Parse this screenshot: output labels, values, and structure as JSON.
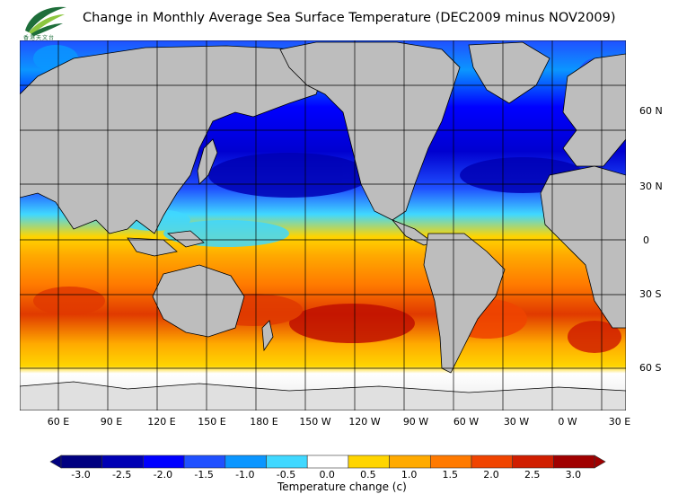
{
  "title": "Change in Monthly Average Sea Surface Temperature (DEC2009 minus NOV2009)",
  "logo": {
    "text": "香港天文台",
    "colors": {
      "leaf_dark": "#1e6e3a",
      "leaf_light": "#8cc63f"
    }
  },
  "map": {
    "land_color": "#bdbdbd",
    "ice_color": "#e0e0e0",
    "grid_color": "#000000",
    "latitude_labels": [
      "60 N",
      "30 N",
      "0",
      "30 S",
      "60 S"
    ],
    "longitude_labels": [
      "60 E",
      "90 E",
      "120 E",
      "150 E",
      "180 E",
      "150 W",
      "120 W",
      "90 W",
      "60 W",
      "30 W",
      "0 W",
      "30 E"
    ]
  },
  "legend": {
    "title": "Temperature change  (c)",
    "tick_labels": [
      "-3.0",
      "-2.5",
      "-2.0",
      "-1.5",
      "-1.0",
      "-0.5",
      "0.0",
      "0.5",
      "1.0",
      "1.5",
      "2.0",
      "2.5",
      "3.0"
    ],
    "colors": [
      "#000080",
      "#0000b4",
      "#0000ff",
      "#2050ff",
      "#0b96ff",
      "#40d8ff",
      "#ffffff",
      "#ffd500",
      "#ffaa00",
      "#ff7a00",
      "#f04400",
      "#d01e00",
      "#a00000"
    ],
    "low_end_color": "#000080",
    "high_end_color": "#a00000"
  }
}
